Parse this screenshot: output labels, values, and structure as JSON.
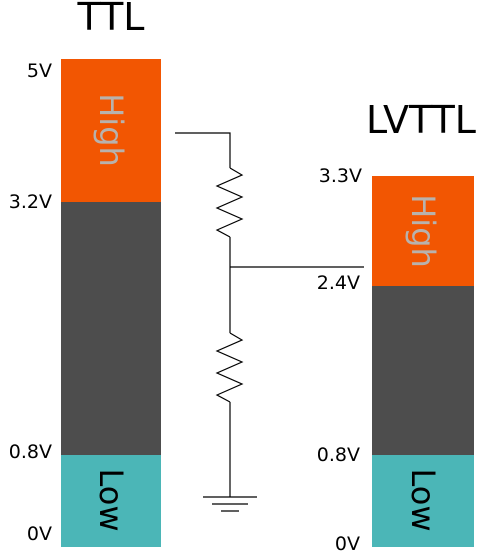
{
  "colors": {
    "high": "#f25602",
    "undefined": "#4d4d4d",
    "low": "#4bb6b7",
    "band_text_high": "#b8b2ad",
    "band_text_low": "#000000",
    "wire": "#000000"
  },
  "ttl": {
    "title": "TTL",
    "levels": {
      "top": "5V",
      "high_min": "3.2V",
      "low_max": "0.8V",
      "bottom": "0V"
    },
    "high_label": "High",
    "low_label": "Low"
  },
  "lvttl": {
    "title": "LVTTL",
    "levels": {
      "top": "3.3V",
      "high_min": "2.4V",
      "low_max": "0.8V",
      "bottom": "0V"
    },
    "high_label": "High",
    "low_label": "Low"
  },
  "circuit": {
    "components": [
      "resistor-top",
      "resistor-bottom",
      "ground-symbol"
    ]
  }
}
